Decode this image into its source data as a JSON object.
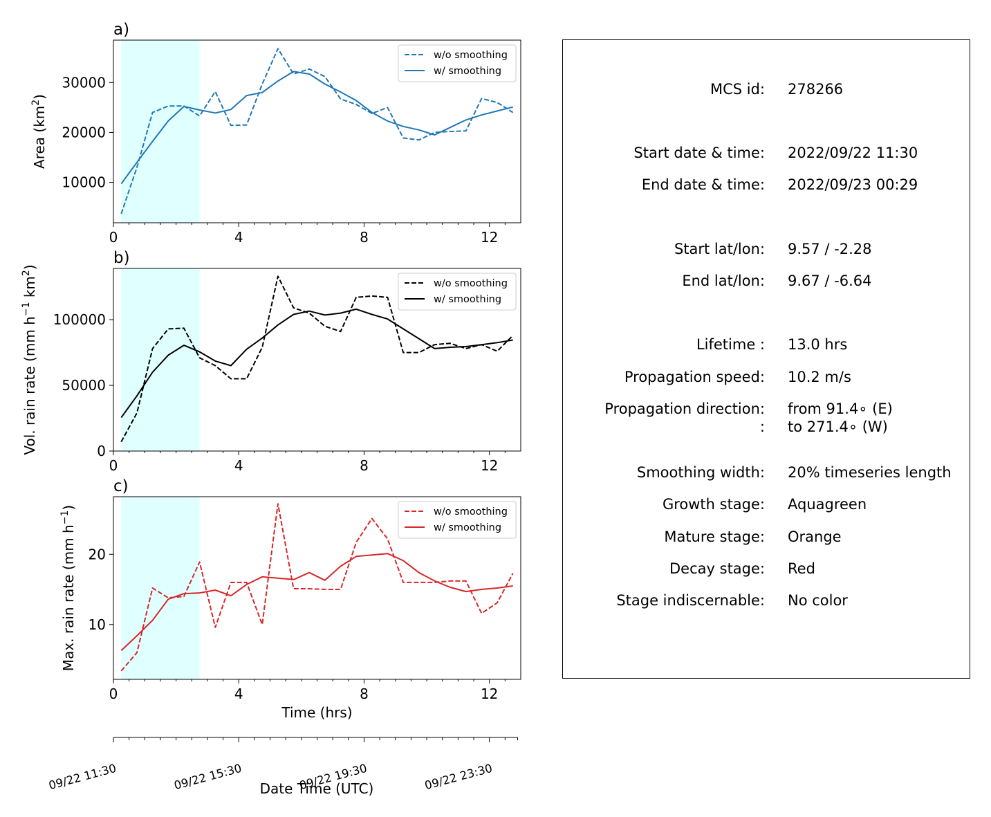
{
  "chart_data": [
    {
      "type": "line",
      "panel_label": "a)",
      "ylabel_text": "Area  (km",
      "ylabel_sup": "2",
      "ylabel_tail": ")",
      "xlim": [
        0,
        13
      ],
      "ylim": [
        1900,
        38500
      ],
      "yticks": [
        10000,
        20000,
        30000
      ],
      "xticks": [
        0,
        4,
        8,
        12
      ],
      "color": "#1f77b4",
      "lifecycle_shading": {
        "x_start": 0.25,
        "x_end": 2.75,
        "color": "#e0ffff"
      },
      "x": [
        0.25,
        0.75,
        1.25,
        1.75,
        2.25,
        2.75,
        3.25,
        3.75,
        4.25,
        4.75,
        5.25,
        5.75,
        6.25,
        6.75,
        7.25,
        7.75,
        8.25,
        8.75,
        9.25,
        9.75,
        10.25,
        10.75,
        11.25,
        11.75,
        12.25,
        12.75
      ],
      "series": [
        {
          "name": "w/o smoothing",
          "style": "dashed",
          "values": [
            3700,
            13000,
            24000,
            25300,
            25300,
            23300,
            28200,
            21400,
            21500,
            29700,
            36800,
            31700,
            32700,
            31200,
            26700,
            25600,
            23800,
            25000,
            18900,
            18500,
            20000,
            20200,
            20300,
            26800,
            26000,
            24000
          ]
        },
        {
          "name": "w/ smoothing",
          "style": "solid",
          "values": [
            9700,
            14000,
            18200,
            22300,
            25200,
            24500,
            23900,
            24600,
            27400,
            28000,
            30300,
            32200,
            31700,
            29700,
            28100,
            26400,
            24000,
            22300,
            21200,
            20500,
            19500,
            21000,
            22500,
            23500,
            24300,
            25100
          ]
        }
      ]
    },
    {
      "type": "line",
      "panel_label": "b)",
      "ylabel_text": "Vol. rain rate (mm h",
      "ylabel_sup": "−1",
      "ylabel_tail": " km",
      "ylabel_sup2": "2",
      "ylabel_tail2": ")",
      "xlim": [
        0,
        13
      ],
      "ylim": [
        0,
        139000
      ],
      "yticks": [
        0,
        50000,
        100000
      ],
      "xticks": [
        0,
        4,
        8,
        12
      ],
      "color": "#000000",
      "lifecycle_shading": {
        "x_start": 0.25,
        "x_end": 2.75,
        "color": "#e0ffff"
      },
      "x": [
        0.25,
        0.75,
        1.25,
        1.75,
        2.25,
        2.75,
        3.25,
        3.75,
        4.25,
        4.75,
        5.25,
        5.75,
        6.25,
        6.75,
        7.25,
        7.75,
        8.25,
        8.75,
        9.25,
        9.75,
        10.25,
        10.75,
        11.25,
        11.75,
        12.25,
        12.75
      ],
      "series": [
        {
          "name": "w/o smoothing",
          "style": "dashed",
          "values": [
            7000,
            29000,
            78000,
            93000,
            93500,
            71000,
            65000,
            55000,
            55000,
            79000,
            133000,
            109000,
            105000,
            95000,
            91000,
            117000,
            118000,
            117000,
            75000,
            75000,
            81000,
            82000,
            78000,
            81000,
            76000,
            88000
          ]
        },
        {
          "name": "w/ smoothing",
          "style": "solid",
          "values": [
            25500,
            42000,
            60000,
            73000,
            80500,
            75500,
            68500,
            65000,
            77500,
            86000,
            96000,
            104000,
            106500,
            103500,
            105000,
            108000,
            104000,
            100500,
            93000,
            85500,
            78000,
            79000,
            79500,
            81000,
            82500,
            84500
          ]
        }
      ]
    },
    {
      "type": "line",
      "panel_label": "c)",
      "ylabel_text": "Max. rain rate  (mm h",
      "ylabel_sup": "−1",
      "ylabel_tail": ")",
      "xlim": [
        0,
        13
      ],
      "ylim": [
        2.2,
        28.2
      ],
      "yticks": [
        10,
        20
      ],
      "xticks": [
        0,
        4,
        8,
        12
      ],
      "xlabel": "Time (hrs)",
      "color": "#d62728",
      "lifecycle_shading": {
        "x_start": 0.25,
        "x_end": 2.75,
        "color": "#e0ffff"
      },
      "x": [
        0.25,
        0.75,
        1.25,
        1.75,
        2.25,
        2.75,
        3.25,
        3.75,
        4.25,
        4.75,
        5.25,
        5.75,
        6.25,
        6.75,
        7.25,
        7.75,
        8.25,
        8.75,
        9.25,
        9.75,
        10.25,
        10.75,
        11.25,
        11.75,
        12.25,
        12.75
      ],
      "series": [
        {
          "name": "w/o smoothing",
          "style": "dashed",
          "values": [
            3.4,
            6.0,
            15.2,
            13.8,
            14.0,
            18.9,
            9.6,
            16.0,
            16.0,
            10.0,
            27.2,
            15.1,
            15.1,
            15.0,
            15.0,
            21.7,
            25.1,
            22.2,
            16.0,
            16.0,
            16.0,
            16.2,
            16.2,
            11.6,
            13.1,
            17.3
          ]
        },
        {
          "name": "w/ smoothing",
          "style": "solid",
          "values": [
            6.3,
            8.4,
            10.6,
            13.6,
            14.4,
            14.5,
            14.9,
            14.1,
            15.7,
            16.8,
            16.6,
            16.4,
            17.4,
            16.3,
            18.3,
            19.7,
            19.9,
            20.1,
            19.1,
            17.4,
            16.2,
            15.3,
            14.7,
            15.0,
            15.2,
            15.5
          ]
        }
      ]
    },
    {
      "type": "line",
      "role": "secondary-datetime-axis",
      "xlim": [
        0,
        13
      ],
      "major_ticks": [
        0,
        4,
        8,
        12
      ],
      "major_tick_labels": [
        "09/22 11:30",
        "09/22 15:30",
        "09/22 19:30",
        "09/22 23:30"
      ],
      "minor_ticks": [
        0.5,
        1,
        1.5,
        2,
        2.5,
        3,
        3.5,
        4.5,
        5,
        5.5,
        6,
        6.5,
        7,
        7.5,
        8.5,
        9,
        9.5,
        10,
        10.5,
        11,
        11.5,
        12.5,
        12.9
      ],
      "xlabel": "Date Time (UTC)"
    }
  ],
  "info_box": {
    "rows": [
      {
        "label": "MCS id:",
        "value": "278266"
      },
      {
        "label": "Start date & time:",
        "value": "2022/09/22 11:30"
      },
      {
        "label": "End date & time:",
        "value": "2022/09/23 00:29"
      },
      {
        "label": "Start lat/lon:",
        "value": "9.57 / -2.28"
      },
      {
        "label": "End lat/lon:",
        "value": "9.67 / -6.64"
      },
      {
        "label": "Lifetime :",
        "value": "13.0 hrs"
      },
      {
        "label": "Propagation speed:",
        "value": "10.2 m/s"
      },
      {
        "label": "Propagation direction:",
        "value": "from  91.4∘ (E)"
      },
      {
        "label": ":",
        "value": "to   271.4∘ (W)"
      },
      {
        "label": "Smoothing width:",
        "value": "20% timeseries length"
      },
      {
        "label": "Growth stage:",
        "value": "Aquagreen"
      },
      {
        "label": "Mature stage:",
        "value": "Orange"
      },
      {
        "label": "Decay stage:",
        "value": "Red"
      },
      {
        "label": "Stage indiscernable:",
        "value": "No color"
      }
    ]
  }
}
